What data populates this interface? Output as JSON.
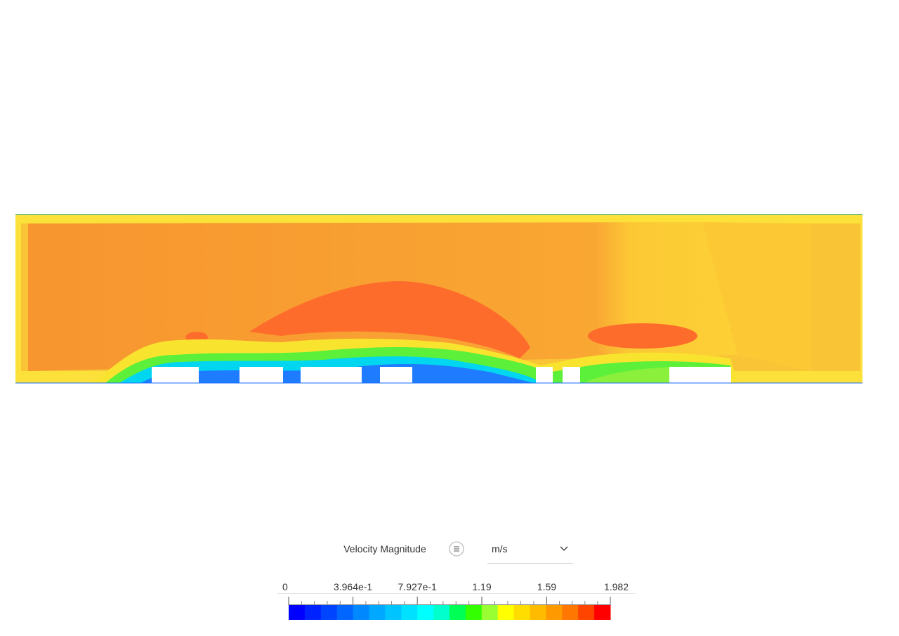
{
  "legend": {
    "title": "Velocity Magnitude",
    "unit": "m/s",
    "range": [
      0,
      1.982
    ],
    "ticks": [
      0,
      {
        "value": 0.3964,
        "label": "3.964e-1"
      },
      {
        "value": 0.7927,
        "label": "7.927e-1"
      },
      1.19,
      1.59,
      1.982
    ],
    "colors": [
      "#0000ff",
      "#0022ff",
      "#0044ff",
      "#0066ff",
      "#0088ff",
      "#00a8ff",
      "#00c4ff",
      "#00e0ff",
      "#00ffff",
      "#00ffcc",
      "#00ff55",
      "#33ff00",
      "#99ff33",
      "#ffff00",
      "#ffdd00",
      "#ffbb00",
      "#ff9900",
      "#ff7700",
      "#ff4400",
      "#ff0000"
    ]
  }
}
